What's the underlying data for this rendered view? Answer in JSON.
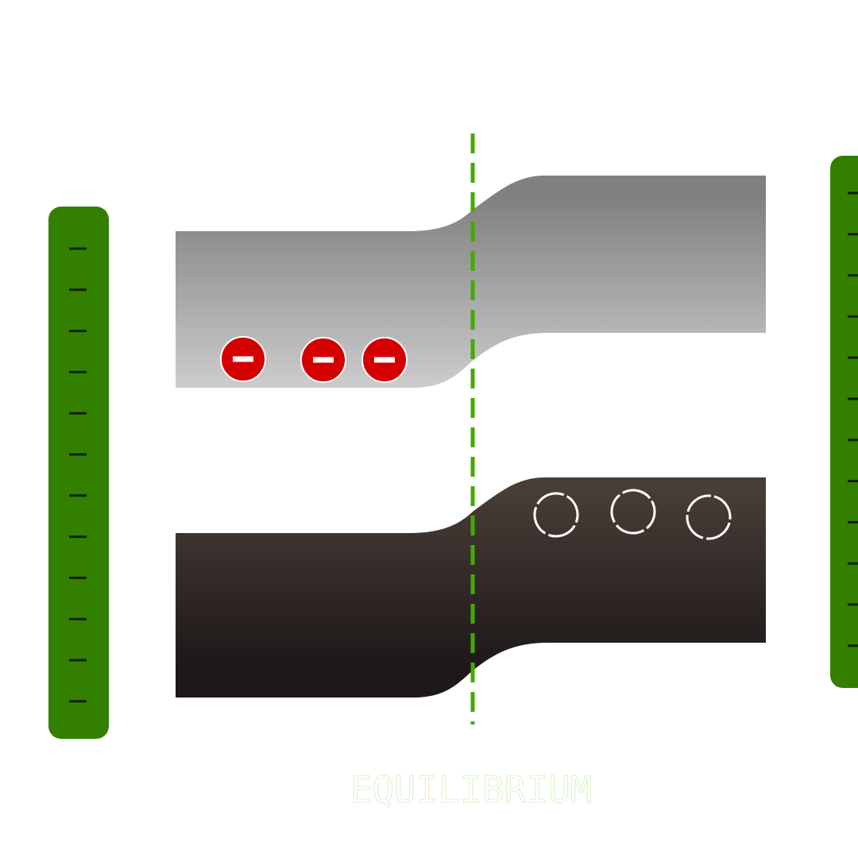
{
  "title": "EQUILIBRIUM",
  "colors": {
    "electrode": "#338000",
    "electrode_tick": "#0e2200",
    "fermi_line": "#44aa00",
    "conduction_band_top": "#808080",
    "conduction_band_bottom": "#cccccc",
    "valence_band_top": "#483e37",
    "valence_band_bottom": "#1e1819",
    "electron": "#d40000",
    "title_stroke": "#d8f5c8"
  },
  "icons": {
    "electron": "minus-circle-icon",
    "hole": "dashed-circle-icon"
  },
  "electrons": [
    "electron",
    "electron",
    "electron"
  ],
  "holes": [
    "hole",
    "hole",
    "hole"
  ]
}
